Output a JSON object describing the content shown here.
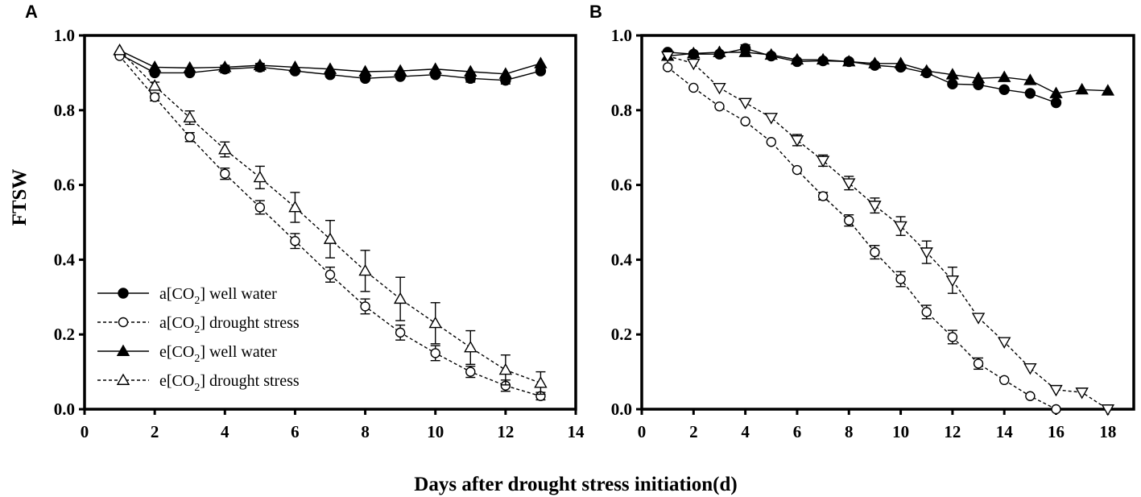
{
  "panels": [
    "A",
    "B"
  ],
  "ylabel": "FTSW",
  "xlabel": "Days after drought stress initiation(d)",
  "legend": {
    "items": [
      {
        "prefix": "a[CO",
        "sub": "2",
        "suffix": "] well water",
        "marker": "circle-filled",
        "dash": false
      },
      {
        "prefix": "a[CO",
        "sub": "2",
        "suffix": "] drought stress",
        "marker": "circle-open",
        "dash": true
      },
      {
        "prefix": "e[CO",
        "sub": "2",
        "suffix": "] well water",
        "marker": "triangle-filled",
        "dash": false
      },
      {
        "prefix": "e[CO",
        "sub": "2",
        "suffix": "] drought stress",
        "marker": "triangle-open",
        "dash": true
      }
    ]
  },
  "chart_data": [
    {
      "panel": "A",
      "type": "line",
      "xlim": [
        0,
        14
      ],
      "ylim": [
        0,
        1.0
      ],
      "xticks": [
        0,
        2,
        4,
        6,
        8,
        10,
        12,
        14
      ],
      "yticks": [
        0.0,
        0.2,
        0.4,
        0.6,
        0.8,
        1.0
      ],
      "ytick_labels": [
        "0.0",
        "0.2",
        "0.4",
        "0.6",
        "0.8",
        "1.0"
      ],
      "series": [
        {
          "name": "a[CO2] well water",
          "marker": "circle-filled",
          "dash": false,
          "x": [
            1,
            2,
            3,
            4,
            5,
            6,
            7,
            8,
            9,
            10,
            11,
            12,
            13
          ],
          "y": [
            0.95,
            0.9,
            0.9,
            0.91,
            0.915,
            0.905,
            0.895,
            0.885,
            0.89,
            0.895,
            0.885,
            0.88,
            0.905
          ],
          "err": [
            0,
            0,
            0,
            0.01,
            0.01,
            0,
            0,
            0,
            0,
            0,
            0.01,
            0.01,
            0
          ]
        },
        {
          "name": "e[CO2] well water",
          "marker": "triangle-filled",
          "dash": false,
          "x": [
            1,
            2,
            3,
            4,
            5,
            6,
            7,
            8,
            9,
            10,
            11,
            12,
            13
          ],
          "y": [
            0.96,
            0.915,
            0.913,
            0.915,
            0.92,
            0.915,
            0.91,
            0.903,
            0.905,
            0.91,
            0.903,
            0.897,
            0.925
          ],
          "err": [
            0,
            0,
            0,
            0,
            0,
            0,
            0,
            0,
            0,
            0,
            0,
            0,
            0
          ]
        },
        {
          "name": "a[CO2] drought stress",
          "marker": "circle-open",
          "dash": true,
          "x": [
            1,
            2,
            3,
            4,
            5,
            6,
            7,
            8,
            9,
            10,
            11,
            12,
            13
          ],
          "y": [
            0.945,
            0.835,
            0.728,
            0.63,
            0.54,
            0.45,
            0.36,
            0.275,
            0.205,
            0.15,
            0.1,
            0.063,
            0.035
          ],
          "err": [
            0,
            0.01,
            0.012,
            0.015,
            0.018,
            0.02,
            0.02,
            0.02,
            0.02,
            0.02,
            0.015,
            0.015,
            0.01
          ]
        },
        {
          "name": "e[CO2] drought stress",
          "marker": "triangle-open",
          "dash": true,
          "x": [
            1,
            2,
            3,
            4,
            5,
            6,
            7,
            8,
            9,
            10,
            11,
            12,
            13
          ],
          "y": [
            0.96,
            0.865,
            0.78,
            0.695,
            0.62,
            0.54,
            0.455,
            0.37,
            0.295,
            0.23,
            0.165,
            0.105,
            0.07
          ],
          "err": [
            0,
            0.01,
            0.018,
            0.02,
            0.03,
            0.04,
            0.05,
            0.055,
            0.058,
            0.055,
            0.045,
            0.04,
            0.03
          ]
        }
      ]
    },
    {
      "panel": "B",
      "type": "line",
      "xlim": [
        0,
        19
      ],
      "ylim": [
        0,
        1.0
      ],
      "xticks": [
        0,
        2,
        4,
        6,
        8,
        10,
        12,
        14,
        16,
        18
      ],
      "yticks": [
        0.0,
        0.2,
        0.4,
        0.6,
        0.8,
        1.0
      ],
      "ytick_labels": [
        "0.0",
        "0.2",
        "0.4",
        "0.6",
        "0.8",
        "1.0"
      ],
      "series": [
        {
          "name": "a[CO2] well water",
          "marker": "circle-filled",
          "dash": false,
          "x": [
            1,
            2,
            3,
            4,
            5,
            6,
            7,
            8,
            9,
            10,
            11,
            12,
            13,
            14,
            15,
            16
          ],
          "y": [
            0.955,
            0.95,
            0.95,
            0.965,
            0.945,
            0.93,
            0.932,
            0.93,
            0.92,
            0.915,
            0.9,
            0.87,
            0.868,
            0.855,
            0.845,
            0.82
          ],
          "err": [
            0,
            0,
            0,
            0.01,
            0,
            0,
            0,
            0,
            0,
            0,
            0,
            0,
            0,
            0,
            0,
            0
          ]
        },
        {
          "name": "e[CO2] well water",
          "marker": "triangle-filled",
          "dash": false,
          "x": [
            1,
            2,
            3,
            4,
            5,
            6,
            7,
            8,
            9,
            10,
            11,
            12,
            13,
            14,
            15,
            16,
            17,
            18
          ],
          "y": [
            0.945,
            0.952,
            0.955,
            0.955,
            0.948,
            0.935,
            0.935,
            0.93,
            0.925,
            0.925,
            0.905,
            0.895,
            0.885,
            0.888,
            0.88,
            0.845,
            0.855,
            0.852
          ],
          "err": [
            0,
            0,
            0,
            0,
            0,
            0,
            0,
            0,
            0,
            0,
            0,
            0,
            0,
            0,
            0,
            0,
            0,
            0
          ]
        },
        {
          "name": "a[CO2] drought stress",
          "marker": "circle-open",
          "dash": true,
          "x": [
            1,
            2,
            3,
            4,
            5,
            6,
            7,
            8,
            9,
            10,
            11,
            12,
            13,
            14,
            15,
            16
          ],
          "y": [
            0.915,
            0.86,
            0.81,
            0.77,
            0.715,
            0.64,
            0.57,
            0.505,
            0.42,
            0.348,
            0.26,
            0.193,
            0.122,
            0.078,
            0.035,
            0.0
          ],
          "err": [
            0,
            0,
            0,
            0,
            0,
            0,
            0.01,
            0.015,
            0.018,
            0.02,
            0.018,
            0.018,
            0.015,
            0,
            0,
            0
          ]
        },
        {
          "name": "e[CO2] drought stress",
          "marker": "triangle-open-down",
          "dash": true,
          "x": [
            1,
            2,
            3,
            4,
            5,
            6,
            7,
            8,
            9,
            10,
            11,
            12,
            13,
            14,
            15,
            16,
            17,
            18
          ],
          "y": [
            0.945,
            0.925,
            0.86,
            0.82,
            0.78,
            0.72,
            0.665,
            0.605,
            0.545,
            0.49,
            0.42,
            0.345,
            0.245,
            0.18,
            0.11,
            0.052,
            0.045,
            0.0
          ],
          "err": [
            0,
            0,
            0,
            0,
            0,
            0.015,
            0.015,
            0.018,
            0.02,
            0.025,
            0.03,
            0.035,
            0,
            0,
            0,
            0,
            0,
            0
          ]
        }
      ]
    }
  ]
}
